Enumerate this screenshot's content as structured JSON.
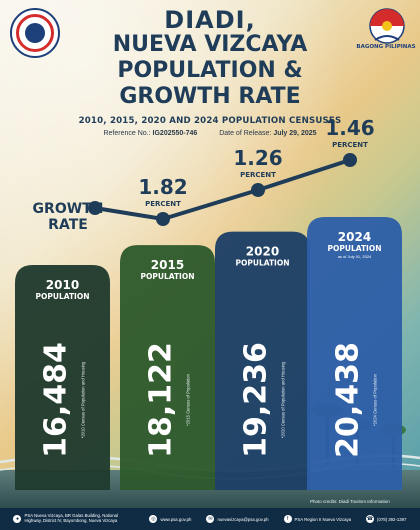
{
  "header": {
    "line1": "DIADI,",
    "line2": "NUEVA VIZCAYA",
    "line3": "POPULATION &",
    "line4": "GROWTH RATE",
    "subtitle": "2010, 2015, 2020 AND 2024 POPULATION CENSUSES",
    "reference_label": "Reference No.:",
    "reference_no": "IG202550-746",
    "release_label": "Date of Release:",
    "release_date": "July 29, 2025",
    "right_logo_text": "BAGONG PILIPINAS"
  },
  "colors": {
    "title": "#1f3c58",
    "bar_2010": "#1f3a2e",
    "bar_2015": "#2e5a2d",
    "bar_2020": "#1d3f66",
    "bar_2024": "#2e5fa8",
    "growth_line": "#1f3c58"
  },
  "chart_data": {
    "type": "bar",
    "categories": [
      "2010",
      "2015",
      "2020",
      "2024"
    ],
    "series": [
      {
        "name": "Population",
        "values": [
          16484,
          18122,
          19236,
          20438
        ]
      }
    ],
    "growth_rate": {
      "label_line1": "GROWTH",
      "label_line2": "RATE",
      "values": [
        null,
        1.82,
        1.26,
        1.46
      ],
      "value_labels": [
        "",
        "1.82",
        "1.26",
        "1.46"
      ],
      "unit": "PERCENT"
    },
    "bar_headers": [
      {
        "year": "2010",
        "label": "POPULATION",
        "sub": ""
      },
      {
        "year": "2015",
        "label": "POPULATION",
        "sub": ""
      },
      {
        "year": "2020",
        "label": "POPULATION",
        "sub": ""
      },
      {
        "year": "2024",
        "label": "POPULATION",
        "sub": "as of July 01, 2024"
      }
    ],
    "value_labels": [
      "16,484",
      "18,122",
      "19,236",
      "20,438"
    ],
    "sources": [
      "*2010 Census of Population and Housing",
      "*2015 Census of Population",
      "*2020 Census of Population and Housing",
      "*2024 Census of Population"
    ]
  },
  "footer": {
    "address": "PSA Nueva Vizcaya, BR Galas Building, National Highway, District IV, Bayombong, Nueva Vizcaya",
    "website": "www.psa.gov.ph",
    "email": "nuevavizcaya@psa.gov.ph",
    "facebook": "PSA Region II Nueva Vizcaya",
    "phone": "(078) 392-1397",
    "photo_credit": "Photo credits: Diadi Tourism Information"
  }
}
